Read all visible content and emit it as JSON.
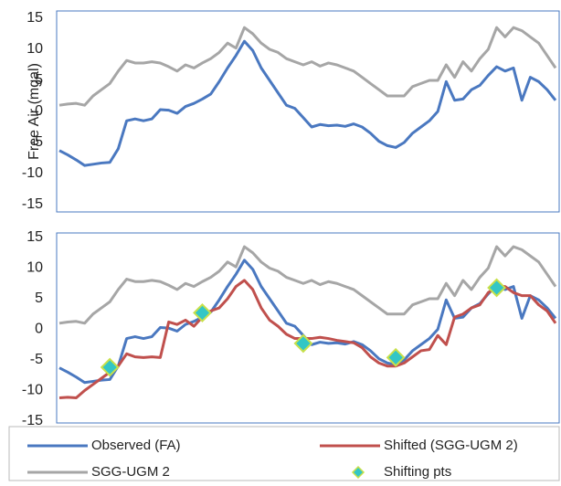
{
  "chart_data": [
    {
      "type": "line",
      "ylabel": "Free Air (mgal)",
      "ylim": [
        -15,
        15
      ],
      "yticks": [
        -15,
        -10,
        -5,
        0,
        5,
        10,
        15
      ],
      "series": [
        {
          "color": "#4a78c0",
          "values": [
            -6.3,
            -7,
            -7.8,
            -8.7,
            -8.5,
            -8.3,
            -8.2,
            -6,
            -1.5,
            -1.2,
            -1.5,
            -1.2,
            0.3,
            0.2,
            -0.3,
            0.8,
            1.3,
            2,
            2.8,
            4.8,
            7,
            9,
            11.3,
            9.8,
            7,
            5,
            3,
            1,
            0.5,
            -1,
            -2.5,
            -2.1,
            -2.3,
            -2.2,
            -2.4,
            -2,
            -2.5,
            -3.5,
            -4.8,
            -5.5,
            -5.8,
            -5,
            -3.5,
            -2.5,
            -1.5,
            0,
            4.8,
            1.8,
            2,
            3.5,
            4.2,
            5.8,
            7.2,
            6.5,
            7,
            1.8,
            5.5,
            4.8,
            3.5,
            1.8
          ]
        },
        {
          "color": "#a6a6a6",
          "values": [
            1,
            1.2,
            1.3,
            1,
            2.5,
            3.5,
            4.5,
            6.5,
            8.2,
            7.8,
            7.8,
            8,
            7.8,
            7.2,
            6.5,
            7.5,
            7,
            7.8,
            8.5,
            9.5,
            11,
            10.2,
            13.5,
            12.5,
            11,
            10,
            9.5,
            8.5,
            8,
            7.5,
            8,
            7.3,
            7.8,
            7.5,
            7,
            6.5,
            5.5,
            4.5,
            3.5,
            2.5,
            2.5,
            2.5,
            4,
            4.5,
            5,
            5,
            7.5,
            5.5,
            8,
            6.5,
            8.5,
            10,
            13.5,
            12,
            13.5,
            13,
            12,
            11,
            9,
            7
          ]
        }
      ]
    },
    {
      "type": "line",
      "ylim": [
        -15,
        15
      ],
      "yticks": [
        -15,
        -10,
        -5,
        0,
        5,
        10,
        15
      ],
      "series": [
        {
          "name": "Observed (FA)",
          "color": "#4a78c0",
          "values": [
            -6.3,
            -7,
            -7.8,
            -8.7,
            -8.5,
            -8.3,
            -8.2,
            -6,
            -1.5,
            -1.2,
            -1.5,
            -1.2,
            0.3,
            0.2,
            -0.3,
            0.8,
            1.3,
            2,
            2.8,
            4.8,
            7,
            9,
            11.3,
            9.8,
            7,
            5,
            3,
            1,
            0.5,
            -1,
            -2.5,
            -2.1,
            -2.3,
            -2.2,
            -2.4,
            -2,
            -2.5,
            -3.5,
            -4.8,
            -5.5,
            -5.8,
            -5,
            -3.5,
            -2.5,
            -1.5,
            0,
            4.8,
            1.8,
            2,
            3.5,
            4.2,
            5.8,
            7.2,
            6.5,
            7,
            1.8,
            5.5,
            4.8,
            3.5,
            1.8
          ]
        },
        {
          "name": "Shifted (SGG-UGM 2)",
          "color": "#c0504d",
          "values": [
            -11.2,
            -11.1,
            -11.2,
            -10,
            -9,
            -8,
            -7,
            -6,
            -4,
            -4.5,
            -4.6,
            -4.5,
            -4.6,
            1.2,
            0.8,
            1.5,
            0.5,
            2,
            3,
            3.5,
            5,
            7,
            8,
            6.5,
            3.5,
            1.5,
            0.5,
            -0.8,
            -1.5,
            -1.5,
            -1.5,
            -1.3,
            -1.5,
            -1.8,
            -2,
            -2.2,
            -3,
            -4.5,
            -5.5,
            -6,
            -6,
            -5.5,
            -4.5,
            -3.5,
            -3.3,
            -1,
            -2.5,
            2,
            2.5,
            3.5,
            4,
            6,
            7,
            7,
            6,
            5.5,
            5.5,
            4,
            3,
            1
          ]
        },
        {
          "name": "SGG-UGM 2",
          "color": "#a6a6a6",
          "values": [
            1,
            1.2,
            1.3,
            1,
            2.5,
            3.5,
            4.5,
            6.5,
            8.2,
            7.8,
            7.8,
            8,
            7.8,
            7.2,
            6.5,
            7.5,
            7,
            7.8,
            8.5,
            9.5,
            11,
            10.2,
            13.5,
            12.5,
            11,
            10,
            9.5,
            8.5,
            8,
            7.5,
            8,
            7.3,
            7.8,
            7.5,
            7,
            6.5,
            5.5,
            4.5,
            3.5,
            2.5,
            2.5,
            2.5,
            4,
            4.5,
            5,
            5,
            7.5,
            5.5,
            8,
            6.5,
            8.5,
            10,
            13.5,
            12,
            13.5,
            13,
            12,
            11,
            9,
            7
          ]
        },
        {
          "name": "Shifting pts",
          "type": "scatter",
          "color": "#33c6c6",
          "x": [
            6,
            17,
            29,
            40,
            52
          ],
          "values": [
            -6.2,
            2.7,
            -2.3,
            -4.6,
            6.8
          ]
        }
      ]
    }
  ]
}
